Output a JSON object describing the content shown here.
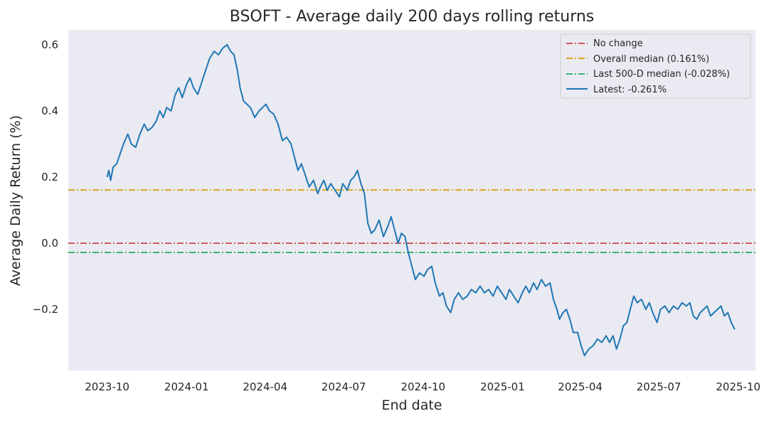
{
  "chart_data": {
    "type": "line",
    "title": "BSOFT - Average daily 200 days rolling returns",
    "xlabel": "End date",
    "ylabel": "Average Daily Return (%)",
    "x_range": [
      "2023-08-17",
      "2025-10-21"
    ],
    "ylim": [
      -0.385,
      0.645
    ],
    "grid": false,
    "legend_position": "top-right",
    "x_ticks": [
      {
        "date": "2023-10-01",
        "label": "2023-10"
      },
      {
        "date": "2024-01-01",
        "label": "2024-01"
      },
      {
        "date": "2024-04-01",
        "label": "2024-04"
      },
      {
        "date": "2024-07-01",
        "label": "2024-07"
      },
      {
        "date": "2024-10-01",
        "label": "2024-10"
      },
      {
        "date": "2025-01-01",
        "label": "2025-01"
      },
      {
        "date": "2025-04-01",
        "label": "2025-04"
      },
      {
        "date": "2025-07-01",
        "label": "2025-07"
      },
      {
        "date": "2025-10-01",
        "label": "2025-10"
      }
    ],
    "y_ticks": [
      {
        "value": 0.6,
        "label": "0.6"
      },
      {
        "value": 0.4,
        "label": "0.4"
      },
      {
        "value": 0.2,
        "label": "0.2"
      },
      {
        "value": 0.0,
        "label": "0.0"
      },
      {
        "value": -0.2,
        "label": "−0.2"
      }
    ],
    "reference_lines": [
      {
        "name": "No change",
        "value": 0.0,
        "color": "#cd5c5c",
        "style": "dashdot"
      },
      {
        "name": "Overall median (0.161%)",
        "value": 0.161,
        "color": "#daa520",
        "style": "dashdot"
      },
      {
        "name": "Last 500-D median (-0.028%)",
        "value": -0.028,
        "color": "#3cb371",
        "style": "dashdot"
      }
    ],
    "series": [
      {
        "name": "Latest: -0.261%",
        "color": "#1f77b4",
        "points": [
          [
            "2023-10-01",
            0.2
          ],
          [
            "2023-10-03",
            0.22
          ],
          [
            "2023-10-05",
            0.19
          ],
          [
            "2023-10-08",
            0.23
          ],
          [
            "2023-10-12",
            0.24
          ],
          [
            "2023-10-16",
            0.27
          ],
          [
            "2023-10-20",
            0.3
          ],
          [
            "2023-10-25",
            0.33
          ],
          [
            "2023-10-29",
            0.3
          ],
          [
            "2023-11-03",
            0.29
          ],
          [
            "2023-11-08",
            0.33
          ],
          [
            "2023-11-13",
            0.36
          ],
          [
            "2023-11-17",
            0.34
          ],
          [
            "2023-11-22",
            0.35
          ],
          [
            "2023-11-27",
            0.37
          ],
          [
            "2023-12-01",
            0.4
          ],
          [
            "2023-12-05",
            0.38
          ],
          [
            "2023-12-09",
            0.41
          ],
          [
            "2023-12-14",
            0.4
          ],
          [
            "2023-12-19",
            0.45
          ],
          [
            "2023-12-23",
            0.47
          ],
          [
            "2023-12-27",
            0.44
          ],
          [
            "2024-01-01",
            0.48
          ],
          [
            "2024-01-05",
            0.5
          ],
          [
            "2024-01-09",
            0.47
          ],
          [
            "2024-01-14",
            0.45
          ],
          [
            "2024-01-19",
            0.49
          ],
          [
            "2024-01-24",
            0.53
          ],
          [
            "2024-01-28",
            0.56
          ],
          [
            "2024-02-02",
            0.58
          ],
          [
            "2024-02-07",
            0.57
          ],
          [
            "2024-02-12",
            0.59
          ],
          [
            "2024-02-17",
            0.6
          ],
          [
            "2024-02-21",
            0.58
          ],
          [
            "2024-02-25",
            0.57
          ],
          [
            "2024-02-29",
            0.52
          ],
          [
            "2024-03-03",
            0.47
          ],
          [
            "2024-03-07",
            0.43
          ],
          [
            "2024-03-11",
            0.42
          ],
          [
            "2024-03-15",
            0.41
          ],
          [
            "2024-03-20",
            0.38
          ],
          [
            "2024-03-25",
            0.4
          ],
          [
            "2024-03-29",
            0.41
          ],
          [
            "2024-04-02",
            0.42
          ],
          [
            "2024-04-06",
            0.4
          ],
          [
            "2024-04-11",
            0.39
          ],
          [
            "2024-04-16",
            0.36
          ],
          [
            "2024-04-21",
            0.31
          ],
          [
            "2024-04-26",
            0.32
          ],
          [
            "2024-05-01",
            0.3
          ],
          [
            "2024-05-05",
            0.26
          ],
          [
            "2024-05-09",
            0.22
          ],
          [
            "2024-05-13",
            0.24
          ],
          [
            "2024-05-17",
            0.21
          ],
          [
            "2024-05-22",
            0.17
          ],
          [
            "2024-05-27",
            0.19
          ],
          [
            "2024-06-01",
            0.15
          ],
          [
            "2024-06-04",
            0.17
          ],
          [
            "2024-06-08",
            0.19
          ],
          [
            "2024-06-12",
            0.16
          ],
          [
            "2024-06-16",
            0.18
          ],
          [
            "2024-06-21",
            0.16
          ],
          [
            "2024-06-26",
            0.14
          ],
          [
            "2024-06-30",
            0.18
          ],
          [
            "2024-07-05",
            0.16
          ],
          [
            "2024-07-09",
            0.19
          ],
          [
            "2024-07-13",
            0.2
          ],
          [
            "2024-07-17",
            0.22
          ],
          [
            "2024-07-21",
            0.18
          ],
          [
            "2024-07-25",
            0.15
          ],
          [
            "2024-07-29",
            0.06
          ],
          [
            "2024-08-02",
            0.03
          ],
          [
            "2024-08-06",
            0.04
          ],
          [
            "2024-08-11",
            0.07
          ],
          [
            "2024-08-16",
            0.02
          ],
          [
            "2024-08-21",
            0.05
          ],
          [
            "2024-08-25",
            0.08
          ],
          [
            "2024-08-29",
            0.04
          ],
          [
            "2024-09-02",
            0.0
          ],
          [
            "2024-09-06",
            0.03
          ],
          [
            "2024-09-10",
            0.02
          ],
          [
            "2024-09-14",
            -0.03
          ],
          [
            "2024-09-18",
            -0.07
          ],
          [
            "2024-09-22",
            -0.11
          ],
          [
            "2024-09-27",
            -0.09
          ],
          [
            "2024-10-02",
            -0.1
          ],
          [
            "2024-10-06",
            -0.08
          ],
          [
            "2024-10-11",
            -0.07
          ],
          [
            "2024-10-15",
            -0.12
          ],
          [
            "2024-10-20",
            -0.16
          ],
          [
            "2024-10-24",
            -0.15
          ],
          [
            "2024-10-28",
            -0.19
          ],
          [
            "2024-11-02",
            -0.21
          ],
          [
            "2024-11-06",
            -0.17
          ],
          [
            "2024-11-11",
            -0.15
          ],
          [
            "2024-11-16",
            -0.17
          ],
          [
            "2024-11-21",
            -0.16
          ],
          [
            "2024-11-26",
            -0.14
          ],
          [
            "2024-12-01",
            -0.15
          ],
          [
            "2024-12-06",
            -0.13
          ],
          [
            "2024-12-11",
            -0.15
          ],
          [
            "2024-12-16",
            -0.14
          ],
          [
            "2024-12-21",
            -0.16
          ],
          [
            "2024-12-26",
            -0.13
          ],
          [
            "2024-12-31",
            -0.15
          ],
          [
            "2025-01-05",
            -0.17
          ],
          [
            "2025-01-09",
            -0.14
          ],
          [
            "2025-01-14",
            -0.16
          ],
          [
            "2025-01-19",
            -0.18
          ],
          [
            "2025-01-24",
            -0.15
          ],
          [
            "2025-01-28",
            -0.13
          ],
          [
            "2025-02-01",
            -0.15
          ],
          [
            "2025-02-06",
            -0.12
          ],
          [
            "2025-02-10",
            -0.14
          ],
          [
            "2025-02-15",
            -0.11
          ],
          [
            "2025-02-20",
            -0.13
          ],
          [
            "2025-02-25",
            -0.12
          ],
          [
            "2025-03-01",
            -0.17
          ],
          [
            "2025-03-05",
            -0.2
          ],
          [
            "2025-03-08",
            -0.23
          ],
          [
            "2025-03-12",
            -0.21
          ],
          [
            "2025-03-16",
            -0.2
          ],
          [
            "2025-03-20",
            -0.23
          ],
          [
            "2025-03-24",
            -0.27
          ],
          [
            "2025-03-29",
            -0.27
          ],
          [
            "2025-04-02",
            -0.31
          ],
          [
            "2025-04-06",
            -0.34
          ],
          [
            "2025-04-11",
            -0.32
          ],
          [
            "2025-04-16",
            -0.31
          ],
          [
            "2025-04-21",
            -0.29
          ],
          [
            "2025-04-26",
            -0.3
          ],
          [
            "2025-05-01",
            -0.28
          ],
          [
            "2025-05-05",
            -0.3
          ],
          [
            "2025-05-09",
            -0.28
          ],
          [
            "2025-05-13",
            -0.32
          ],
          [
            "2025-05-17",
            -0.29
          ],
          [
            "2025-05-21",
            -0.25
          ],
          [
            "2025-05-25",
            -0.24
          ],
          [
            "2025-05-29",
            -0.2
          ],
          [
            "2025-06-02",
            -0.16
          ],
          [
            "2025-06-06",
            -0.18
          ],
          [
            "2025-06-11",
            -0.17
          ],
          [
            "2025-06-16",
            -0.2
          ],
          [
            "2025-06-20",
            -0.18
          ],
          [
            "2025-06-24",
            -0.21
          ],
          [
            "2025-06-29",
            -0.24
          ],
          [
            "2025-07-03",
            -0.2
          ],
          [
            "2025-07-08",
            -0.19
          ],
          [
            "2025-07-13",
            -0.21
          ],
          [
            "2025-07-18",
            -0.19
          ],
          [
            "2025-07-23",
            -0.2
          ],
          [
            "2025-07-28",
            -0.18
          ],
          [
            "2025-08-02",
            -0.19
          ],
          [
            "2025-08-06",
            -0.18
          ],
          [
            "2025-08-10",
            -0.22
          ],
          [
            "2025-08-14",
            -0.23
          ],
          [
            "2025-08-18",
            -0.21
          ],
          [
            "2025-08-22",
            -0.2
          ],
          [
            "2025-08-26",
            -0.19
          ],
          [
            "2025-08-30",
            -0.22
          ],
          [
            "2025-09-03",
            -0.21
          ],
          [
            "2025-09-07",
            -0.2
          ],
          [
            "2025-09-11",
            -0.19
          ],
          [
            "2025-09-15",
            -0.22
          ],
          [
            "2025-09-19",
            -0.21
          ],
          [
            "2025-09-23",
            -0.24
          ],
          [
            "2025-09-27",
            -0.261
          ]
        ]
      }
    ]
  }
}
